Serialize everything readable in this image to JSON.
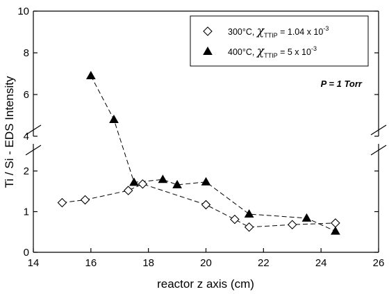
{
  "chart_data": {
    "type": "scatter",
    "xlabel": "reactor z axis (cm)",
    "ylabel": "Ti / Si - EDS Intensity",
    "xlim": [
      14,
      26
    ],
    "ylim": [
      0,
      10
    ],
    "y_axis_break": [
      2.5,
      3.5
    ],
    "xticks": [
      14,
      16,
      18,
      20,
      22,
      24,
      26
    ],
    "yticks": [
      0,
      1,
      2,
      4,
      6,
      8,
      10
    ],
    "grid": false,
    "legend_position": "top-right",
    "legend_parts": [
      {
        "base": "300°C, ",
        "chi": "χ",
        "sub": "TTIP",
        "eq": " = 1.04 x 10",
        "sup": "-3"
      },
      {
        "base": "400°C, ",
        "chi": "χ",
        "sub": "TTIP",
        "eq": " = 5 x 10",
        "sup": "-3"
      }
    ],
    "annotation": "P = 1 Torr",
    "series": [
      {
        "name": "300°C, χTTIP = 1.04 x 10-3",
        "marker": "open-diamond",
        "line": "dashed",
        "x": [
          15.0,
          15.8,
          17.3,
          17.8,
          20.0,
          21.0,
          21.5,
          23.0,
          24.5
        ],
        "y": [
          1.22,
          1.29,
          1.52,
          1.68,
          1.17,
          0.81,
          0.62,
          0.68,
          0.72
        ]
      },
      {
        "name": "400°C, χTTIP = 5 x 10-3",
        "marker": "filled-triangle",
        "line": "dashed",
        "x": [
          16.0,
          16.8,
          17.5,
          18.5,
          19.0,
          20.0,
          21.5,
          23.5,
          24.5
        ],
        "y": [
          6.9,
          4.8,
          1.72,
          1.79,
          1.66,
          1.73,
          0.94,
          0.84,
          0.52
        ]
      }
    ]
  }
}
